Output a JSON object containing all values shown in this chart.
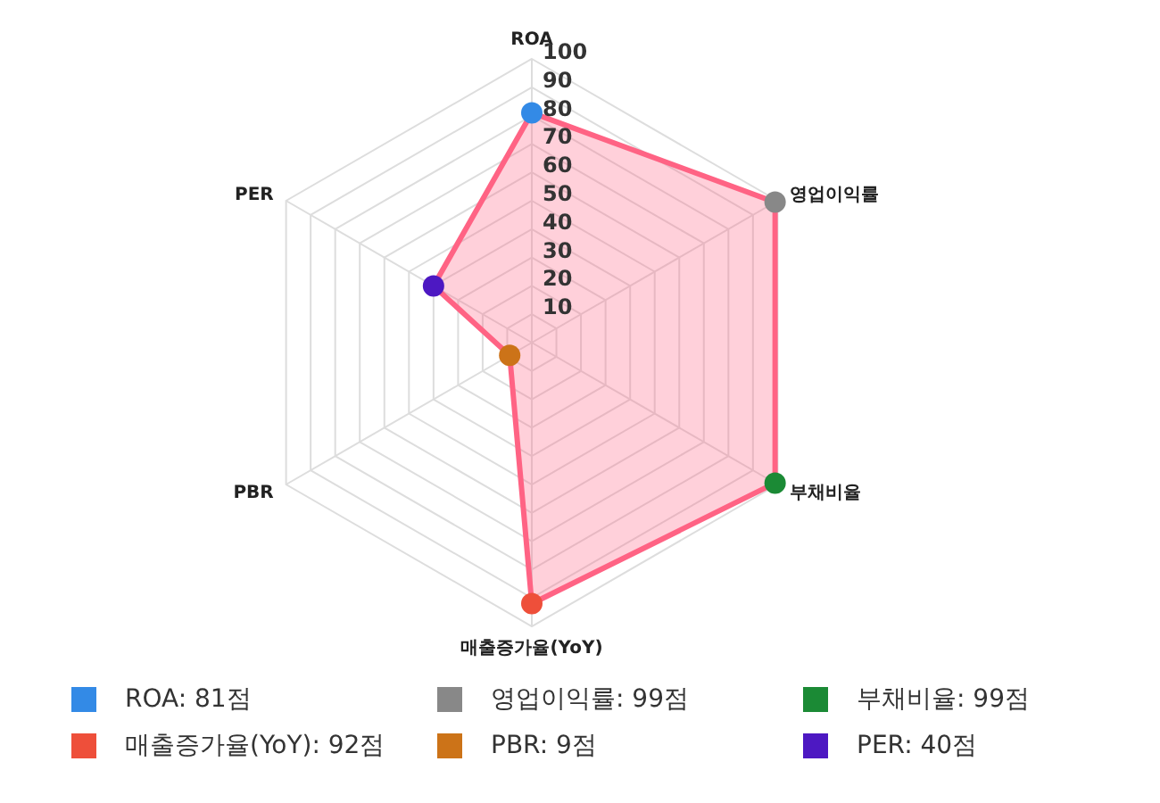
{
  "chart_data": {
    "type": "radar",
    "categories": [
      "ROA",
      "영업이익률",
      "부채비율",
      "매출증가율(YoY)",
      "PBR",
      "PER"
    ],
    "series": [
      {
        "color": "#ff6384",
        "values": [
          81,
          99,
          99,
          92,
          9,
          40
        ],
        "colors": [
          "#338ae6",
          "#888888",
          "#1b8a35",
          "#ee4f3a",
          "#cc7318",
          "#4d18c2"
        ]
      }
    ],
    "annotations": [
      "ROA: 81점",
      "영업이익률: 99점",
      "부채비율: 99점",
      "매출증가율(YoY): 92점",
      "PBR: 9점",
      "PER: 40점"
    ],
    "ylim": [
      0,
      100
    ],
    "yticks": [
      10,
      20,
      30,
      40,
      50,
      60,
      70,
      80,
      90,
      100
    ],
    "grid": true,
    "marker": "circle"
  }
}
